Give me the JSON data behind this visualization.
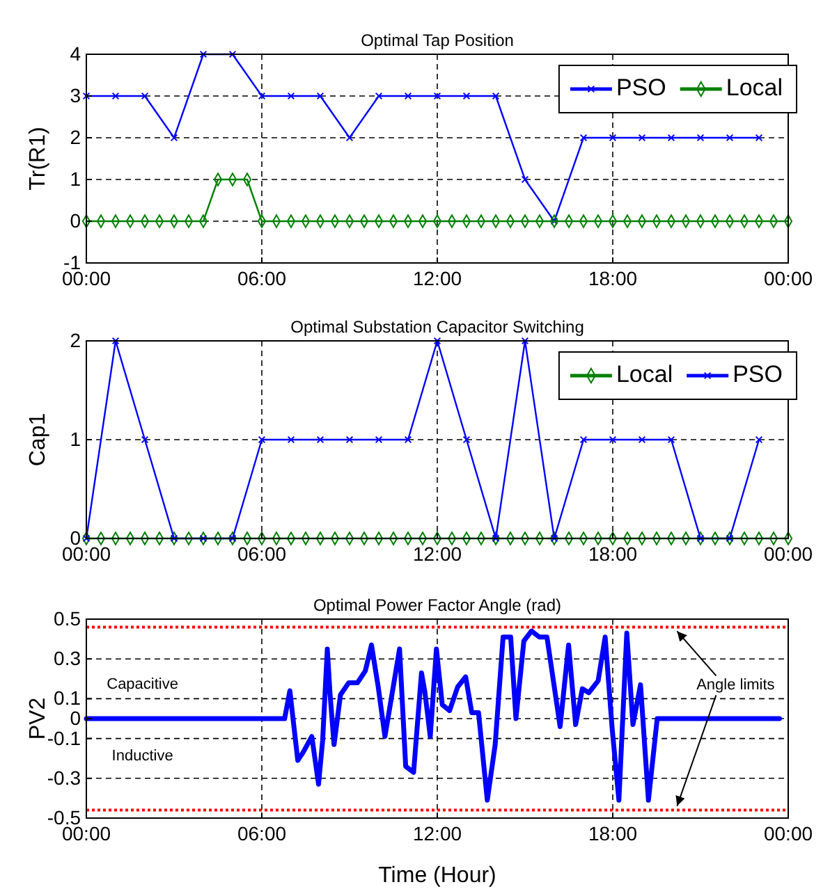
{
  "chart_data": [
    {
      "type": "line",
      "title": "Optimal Tap Position",
      "ylabel": "Tr(R1)",
      "xlim": [
        0,
        24
      ],
      "xticks": [
        {
          "value": 0,
          "label": "00:00"
        },
        {
          "value": 6,
          "label": "06:00"
        },
        {
          "value": 12,
          "label": "12:00"
        },
        {
          "value": 18,
          "label": "18:00"
        },
        {
          "value": 24,
          "label": "00:00"
        }
      ],
      "ylim": [
        -1,
        4
      ],
      "yticks": [
        -1,
        0,
        1,
        2,
        3,
        4
      ],
      "grid": true,
      "legend": "top right",
      "line_style": "solid",
      "series": [
        {
          "name": "PSO",
          "color": "#0000ff",
          "marker": "cross",
          "x": [
            0,
            1,
            2,
            3,
            4,
            5,
            6,
            7,
            8,
            9,
            10,
            11,
            12,
            13,
            14,
            15,
            16,
            17,
            18,
            19,
            20,
            21,
            22,
            23
          ],
          "values": [
            3,
            3,
            3,
            2,
            4,
            4,
            3,
            3,
            3,
            2,
            3,
            3,
            3,
            3,
            3,
            1,
            0,
            2,
            2,
            2,
            2,
            2,
            2,
            2
          ]
        },
        {
          "name": "Local",
          "color": "#008000",
          "marker": "diamond",
          "x": [
            0,
            0.5,
            1,
            1.5,
            2,
            2.5,
            3,
            3.5,
            4,
            4.5,
            5,
            5.5,
            6,
            6.5,
            7,
            7.5,
            8,
            8.5,
            9,
            9.5,
            10,
            10.5,
            11,
            11.5,
            12,
            12.5,
            13,
            13.5,
            14,
            14.5,
            15,
            15.5,
            16,
            16.5,
            17,
            17.5,
            18,
            18.5,
            19,
            19.5,
            20,
            20.5,
            21,
            21.5,
            22,
            22.5,
            23,
            23.5,
            24
          ],
          "values": [
            0,
            0,
            0,
            0,
            0,
            0,
            0,
            0,
            0,
            1,
            1,
            1,
            0,
            0,
            0,
            0,
            0,
            0,
            0,
            0,
            0,
            0,
            0,
            0,
            0,
            0,
            0,
            0,
            0,
            0,
            0,
            0,
            0,
            0,
            0,
            0,
            0,
            0,
            0,
            0,
            0,
            0,
            0,
            0,
            0,
            0,
            0,
            0,
            0
          ]
        }
      ]
    },
    {
      "type": "line",
      "title": "Optimal Substation Capacitor Switching",
      "ylabel": "Cap1",
      "xlim": [
        0,
        24
      ],
      "xticks": [
        {
          "value": 0,
          "label": "00:00"
        },
        {
          "value": 6,
          "label": "06:00"
        },
        {
          "value": 12,
          "label": "12:00"
        },
        {
          "value": 18,
          "label": "18:00"
        },
        {
          "value": 24,
          "label": "00:00"
        }
      ],
      "ylim": [
        0,
        2
      ],
      "yticks": [
        0,
        1,
        2
      ],
      "grid": true,
      "legend": "top right",
      "line_style": "solid",
      "series": [
        {
          "name": "Local",
          "color": "#008000",
          "marker": "diamond",
          "x": [
            0,
            0.5,
            1,
            1.5,
            2,
            2.5,
            3,
            3.5,
            4,
            4.5,
            5,
            5.5,
            6,
            6.5,
            7,
            7.5,
            8,
            8.5,
            9,
            9.5,
            10,
            10.5,
            11,
            11.5,
            12,
            12.5,
            13,
            13.5,
            14,
            14.5,
            15,
            15.5,
            16,
            16.5,
            17,
            17.5,
            18,
            18.5,
            19,
            19.5,
            20,
            20.5,
            21,
            21.5,
            22,
            22.5,
            23,
            23.5,
            24
          ],
          "values": [
            0,
            0,
            0,
            0,
            0,
            0,
            0,
            0,
            0,
            0,
            0,
            0,
            0,
            0,
            0,
            0,
            0,
            0,
            0,
            0,
            0,
            0,
            0,
            0,
            0,
            0,
            0,
            0,
            0,
            0,
            0,
            0,
            0,
            0,
            0,
            0,
            0,
            0,
            0,
            0,
            0,
            0,
            0,
            0,
            0,
            0,
            0,
            0,
            0
          ]
        },
        {
          "name": "PSO",
          "color": "#0000ff",
          "marker": "cross",
          "x": [
            0,
            1,
            2,
            3,
            4,
            5,
            6,
            7,
            8,
            9,
            10,
            11,
            12,
            13,
            14,
            15,
            16,
            17,
            18,
            19,
            20,
            21,
            22,
            23
          ],
          "values": [
            0,
            2,
            1,
            0,
            0,
            0,
            1,
            1,
            1,
            1,
            1,
            1,
            2,
            1,
            0,
            2,
            0,
            1,
            1,
            1,
            1,
            0,
            0,
            1
          ]
        }
      ]
    },
    {
      "type": "line",
      "title": "Optimal Power Factor Angle (rad)",
      "xlabel": "Time (Hour)",
      "ylabel": "PV2",
      "xlim": [
        0,
        24
      ],
      "xticks": [
        {
          "value": 0,
          "label": "00:00"
        },
        {
          "value": 6,
          "label": "06:00"
        },
        {
          "value": 12,
          "label": "12:00"
        },
        {
          "value": 18,
          "label": "18:00"
        },
        {
          "value": 24,
          "label": "00:00"
        }
      ],
      "ylim": [
        -0.5,
        0.5
      ],
      "yticks": [
        -0.5,
        -0.3,
        -0.1,
        0,
        0.1,
        0.3,
        0.5
      ],
      "grid": true,
      "line_style": "solid",
      "ref_lines": [
        {
          "axis": "y",
          "value": 0.46,
          "color": "#ff0000",
          "line_style": "dotted"
        },
        {
          "axis": "y",
          "value": -0.46,
          "color": "#ff0000",
          "line_style": "dotted"
        }
      ],
      "annotations": [
        "Capacitive",
        "Inductive",
        {
          "text": "Angle limits",
          "x": 20.2,
          "y": 0.46
        }
      ],
      "series": [
        {
          "color": "#0000ff",
          "x": [
            0,
            6.78,
            6.96,
            7.09,
            7.23,
            7.41,
            7.71,
            7.94,
            8.08,
            8.24,
            8.33,
            8.47,
            8.69,
            8.97,
            9.27,
            9.54,
            9.75,
            9.98,
            10.21,
            10.46,
            10.71,
            10.92,
            11.19,
            11.46,
            11.58,
            11.76,
            11.97,
            12.17,
            12.42,
            12.7,
            12.97,
            13.18,
            13.41,
            13.71,
            13.98,
            14.25,
            14.51,
            14.69,
            14.96,
            15.22,
            15.49,
            15.75,
            16.2,
            16.49,
            16.73,
            16.96,
            17.18,
            17.5,
            17.74,
            17.98,
            18.21,
            18.48,
            18.69,
            18.95,
            19.22,
            19.52,
            23.7
          ],
          "values": [
            0,
            0,
            0.14,
            -0.03,
            -0.21,
            -0.17,
            -0.09,
            -0.33,
            -0.11,
            0.35,
            0.13,
            -0.13,
            0.12,
            0.18,
            0.18,
            0.24,
            0.37,
            0.16,
            -0.09,
            0.13,
            0.35,
            -0.24,
            -0.27,
            0.23,
            0.13,
            -0.09,
            0.35,
            0.07,
            0.04,
            0.16,
            0.21,
            0.03,
            0.03,
            -0.41,
            -0.13,
            0.41,
            0.41,
            0,
            0.39,
            0.44,
            0.41,
            0.41,
            -0.04,
            0.37,
            -0.03,
            0.15,
            0.13,
            0.19,
            0.41,
            -0.05,
            -0.41,
            0.43,
            -0.03,
            0.17,
            -0.41,
            0,
            0
          ]
        }
      ]
    }
  ]
}
